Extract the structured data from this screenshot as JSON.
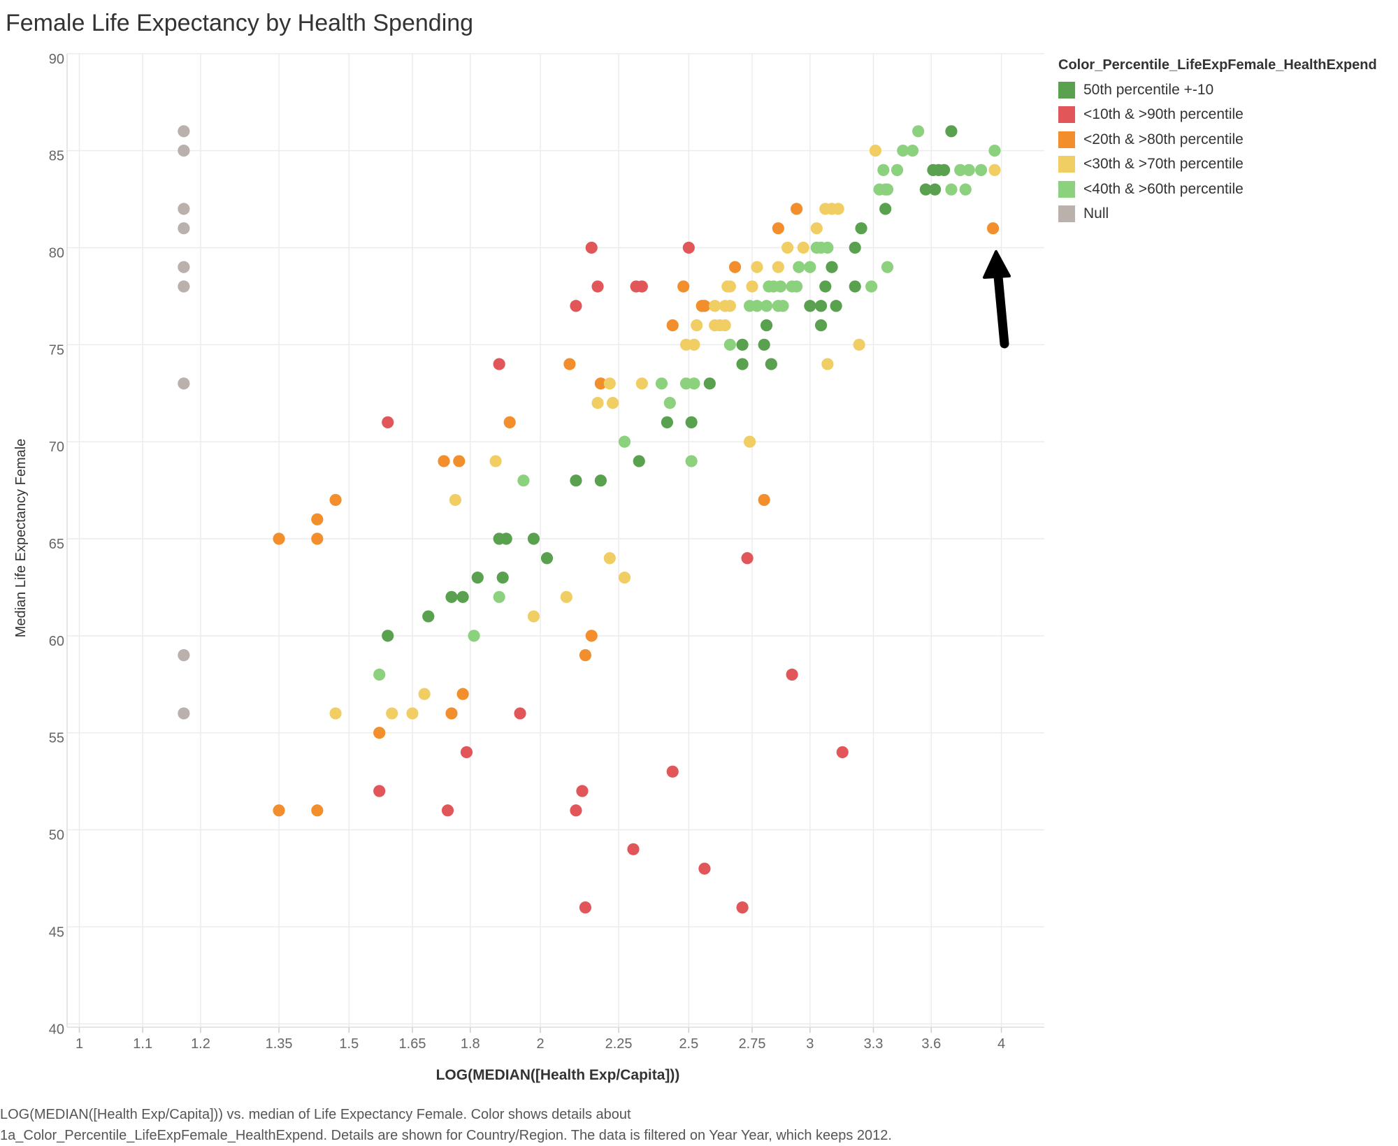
{
  "title": "Female Life Expectancy by Health Spending",
  "legend": {
    "title": "Color_Percentile_LifeExpFemale_HealthExpend",
    "items": [
      {
        "label": "50th percentile +-10",
        "color": "#59a14f"
      },
      {
        "label": "<10th &  >90th percentile",
        "color": "#e15759"
      },
      {
        "label": "<20th & >80th percentile",
        "color": "#f28e2b"
      },
      {
        "label": "<30th & >70th percentile",
        "color": "#f1ce63"
      },
      {
        "label": "<40th & >60th percentile",
        "color": "#8cd17d"
      },
      {
        "label": "Null",
        "color": "#bab0ac"
      }
    ]
  },
  "footer": {
    "line1": "LOG(MEDIAN([Health Exp/Capita])) vs. median of Life Expectancy Female.  Color shows details about",
    "line2": "1a_Color_Percentile_LifeExpFemale_HealthExpend.  Details are shown for Country/Region. The data is filtered on Year Year, which keeps 2012."
  },
  "chart_data": {
    "type": "scatter",
    "title": "Female Life Expectancy by Health Spending",
    "xlabel": "LOG(MEDIAN([Health Exp/Capita]))",
    "ylabel": "Median Life Expectancy Female",
    "x_scale": "log",
    "xlim": [
      0.95,
      4.4
    ],
    "ylim": [
      40,
      90
    ],
    "x_ticks": [
      1,
      1.1,
      1.2,
      1.35,
      1.5,
      1.65,
      1.8,
      2,
      2.25,
      2.5,
      2.75,
      3,
      3.3,
      3.6,
      4
    ],
    "y_ticks": [
      40,
      45,
      50,
      55,
      60,
      65,
      70,
      75,
      80,
      85,
      90
    ],
    "grid": true,
    "legend_position": "right",
    "annotation": "arrow pointing to orange point at (3.95, 81)",
    "points_format": "[x, y, legend_index]",
    "points": [
      [
        1.17,
        86,
        5
      ],
      [
        1.17,
        85,
        5
      ],
      [
        1.17,
        82,
        5
      ],
      [
        1.17,
        81,
        5
      ],
      [
        1.17,
        79,
        5
      ],
      [
        1.17,
        78,
        5
      ],
      [
        1.17,
        73,
        5
      ],
      [
        1.17,
        59,
        5
      ],
      [
        1.17,
        56,
        5
      ],
      [
        3.53,
        86,
        4
      ],
      [
        3.71,
        86,
        0
      ],
      [
        3.31,
        85,
        3
      ],
      [
        3.45,
        85,
        4
      ],
      [
        3.5,
        85,
        4
      ],
      [
        3.96,
        85,
        4
      ],
      [
        3.35,
        84,
        4
      ],
      [
        3.42,
        84,
        4
      ],
      [
        3.61,
        84,
        0
      ],
      [
        3.64,
        84,
        0
      ],
      [
        3.67,
        84,
        0
      ],
      [
        3.76,
        84,
        4
      ],
      [
        3.81,
        84,
        4
      ],
      [
        3.88,
        84,
        4
      ],
      [
        3.96,
        84,
        3
      ],
      [
        3.33,
        83,
        4
      ],
      [
        3.36,
        83,
        4
      ],
      [
        3.37,
        83,
        4
      ],
      [
        3.57,
        83,
        0
      ],
      [
        3.62,
        83,
        0
      ],
      [
        3.71,
        83,
        4
      ],
      [
        3.79,
        83,
        4
      ],
      [
        2.94,
        82,
        2
      ],
      [
        3.07,
        82,
        3
      ],
      [
        3.1,
        82,
        3
      ],
      [
        3.13,
        82,
        3
      ],
      [
        3.36,
        82,
        0
      ],
      [
        2.86,
        81,
        2
      ],
      [
        3.03,
        81,
        3
      ],
      [
        3.24,
        81,
        0
      ],
      [
        3.95,
        81,
        2
      ],
      [
        2.16,
        80,
        1
      ],
      [
        2.5,
        80,
        1
      ],
      [
        2.9,
        80,
        3
      ],
      [
        2.97,
        80,
        3
      ],
      [
        3.03,
        80,
        4
      ],
      [
        3.05,
        80,
        4
      ],
      [
        3.08,
        80,
        4
      ],
      [
        3.21,
        80,
        0
      ],
      [
        2.68,
        79,
        2
      ],
      [
        2.77,
        79,
        3
      ],
      [
        2.86,
        79,
        3
      ],
      [
        2.95,
        79,
        4
      ],
      [
        3.0,
        79,
        4
      ],
      [
        3.1,
        79,
        0
      ],
      [
        3.37,
        79,
        4
      ],
      [
        2.18,
        78,
        1
      ],
      [
        2.31,
        78,
        1
      ],
      [
        2.33,
        78,
        1
      ],
      [
        2.48,
        78,
        2
      ],
      [
        2.65,
        78,
        3
      ],
      [
        2.66,
        78,
        3
      ],
      [
        2.75,
        78,
        3
      ],
      [
        2.82,
        78,
        4
      ],
      [
        2.84,
        78,
        4
      ],
      [
        2.87,
        78,
        4
      ],
      [
        2.92,
        78,
        4
      ],
      [
        2.94,
        78,
        4
      ],
      [
        3.07,
        78,
        0
      ],
      [
        3.21,
        78,
        0
      ],
      [
        3.29,
        78,
        4
      ],
      [
        2.11,
        77,
        1
      ],
      [
        2.55,
        77,
        2
      ],
      [
        2.56,
        77,
        2
      ],
      [
        2.6,
        77,
        3
      ],
      [
        2.64,
        77,
        3
      ],
      [
        2.66,
        77,
        3
      ],
      [
        2.74,
        77,
        4
      ],
      [
        2.77,
        77,
        4
      ],
      [
        2.81,
        77,
        4
      ],
      [
        2.86,
        77,
        4
      ],
      [
        2.88,
        77,
        4
      ],
      [
        3.0,
        77,
        0
      ],
      [
        3.05,
        77,
        0
      ],
      [
        3.12,
        77,
        0
      ],
      [
        2.44,
        76,
        2
      ],
      [
        2.53,
        76,
        3
      ],
      [
        2.6,
        76,
        3
      ],
      [
        2.62,
        76,
        3
      ],
      [
        2.64,
        76,
        3
      ],
      [
        2.81,
        76,
        0
      ],
      [
        3.05,
        76,
        0
      ],
      [
        2.49,
        75,
        3
      ],
      [
        2.52,
        75,
        3
      ],
      [
        2.66,
        75,
        4
      ],
      [
        2.71,
        75,
        0
      ],
      [
        2.8,
        75,
        0
      ],
      [
        3.23,
        75,
        3
      ],
      [
        1.88,
        74,
        1
      ],
      [
        2.09,
        74,
        2
      ],
      [
        2.71,
        74,
        0
      ],
      [
        2.83,
        74,
        0
      ],
      [
        3.08,
        74,
        3
      ],
      [
        2.19,
        73,
        2
      ],
      [
        2.22,
        73,
        3
      ],
      [
        2.33,
        73,
        3
      ],
      [
        2.4,
        73,
        4
      ],
      [
        2.49,
        73,
        4
      ],
      [
        2.52,
        73,
        4
      ],
      [
        2.58,
        73,
        0
      ],
      [
        2.18,
        72,
        3
      ],
      [
        2.23,
        72,
        3
      ],
      [
        2.43,
        72,
        4
      ],
      [
        1.59,
        71,
        1
      ],
      [
        1.91,
        71,
        2
      ],
      [
        2.42,
        71,
        0
      ],
      [
        2.51,
        71,
        0
      ],
      [
        2.27,
        70,
        4
      ],
      [
        2.74,
        70,
        3
      ],
      [
        1.73,
        69,
        2
      ],
      [
        1.77,
        69,
        2
      ],
      [
        1.87,
        69,
        3
      ],
      [
        2.32,
        69,
        0
      ],
      [
        2.51,
        69,
        4
      ],
      [
        1.95,
        68,
        4
      ],
      [
        2.11,
        68,
        0
      ],
      [
        2.19,
        68,
        0
      ],
      [
        1.47,
        67,
        2
      ],
      [
        1.76,
        67,
        3
      ],
      [
        2.8,
        67,
        2
      ],
      [
        1.43,
        66,
        2
      ],
      [
        1.35,
        65,
        2
      ],
      [
        1.43,
        65,
        2
      ],
      [
        1.88,
        65,
        0
      ],
      [
        1.9,
        65,
        0
      ],
      [
        1.98,
        65,
        0
      ],
      [
        2.02,
        64,
        0
      ],
      [
        2.22,
        64,
        3
      ],
      [
        2.73,
        64,
        1
      ],
      [
        1.82,
        63,
        0
      ],
      [
        1.89,
        63,
        0
      ],
      [
        2.27,
        63,
        3
      ],
      [
        1.75,
        62,
        0
      ],
      [
        1.78,
        62,
        0
      ],
      [
        1.88,
        62,
        4
      ],
      [
        2.08,
        62,
        3
      ],
      [
        1.69,
        61,
        0
      ],
      [
        1.98,
        61,
        3
      ],
      [
        1.59,
        60,
        0
      ],
      [
        1.81,
        60,
        4
      ],
      [
        2.16,
        60,
        2
      ],
      [
        2.14,
        59,
        2
      ],
      [
        1.57,
        58,
        4
      ],
      [
        2.92,
        58,
        1
      ],
      [
        1.68,
        57,
        3
      ],
      [
        1.78,
        57,
        2
      ],
      [
        1.47,
        56,
        3
      ],
      [
        1.6,
        56,
        3
      ],
      [
        1.65,
        56,
        3
      ],
      [
        1.75,
        56,
        2
      ],
      [
        1.94,
        56,
        1
      ],
      [
        1.57,
        55,
        2
      ],
      [
        1.79,
        54,
        1
      ],
      [
        3.15,
        54,
        1
      ],
      [
        2.44,
        53,
        1
      ],
      [
        1.57,
        52,
        1
      ],
      [
        2.13,
        52,
        1
      ],
      [
        1.35,
        51,
        2
      ],
      [
        1.43,
        51,
        2
      ],
      [
        1.74,
        51,
        1
      ],
      [
        2.11,
        51,
        1
      ],
      [
        2.3,
        49,
        1
      ],
      [
        2.56,
        48,
        1
      ],
      [
        2.14,
        46,
        1
      ],
      [
        2.71,
        46,
        1
      ]
    ]
  }
}
